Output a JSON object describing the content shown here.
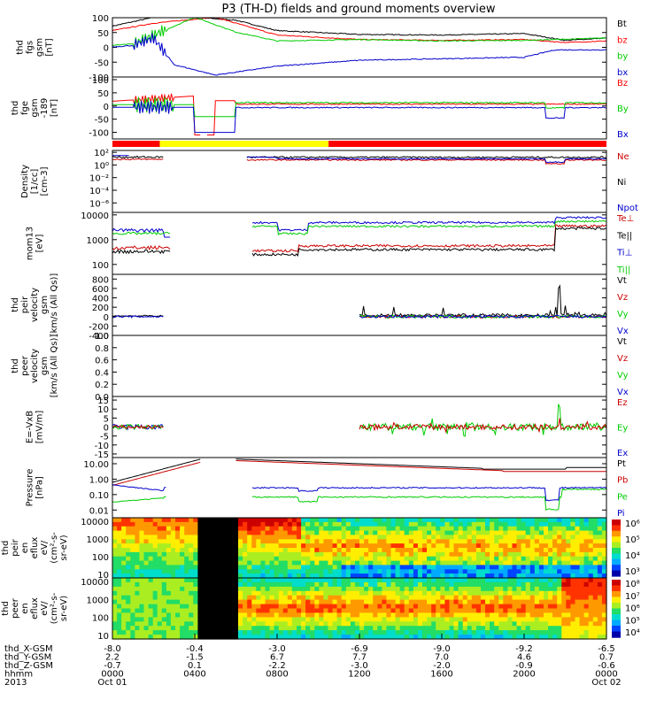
{
  "title": "P3 (TH-D) fields and ground moments overview",
  "panels": [
    {
      "id": "fgs",
      "ylabel": [
        "thd",
        "fgs",
        "gsm",
        "[nT]"
      ],
      "ticks": [
        "100",
        "50",
        "0",
        "-50",
        "-100"
      ],
      "tickvals": [
        100,
        50,
        0,
        -50,
        -100
      ],
      "ylim": [
        -100,
        100
      ],
      "log": false,
      "legend": [
        {
          "text": "Bt",
          "color": "#000000"
        },
        {
          "text": "bz",
          "color": "#ff0000"
        },
        {
          "text": "by",
          "color": "#00cc00"
        },
        {
          "text": "bx",
          "color": "#0000cc"
        }
      ]
    },
    {
      "id": "fge",
      "ylabel": [
        "thd",
        "fge",
        "gsm",
        "-189",
        "[nT]"
      ],
      "ticks": [
        "100",
        "50",
        "0",
        "-50",
        "-100"
      ],
      "tickvals": [
        100,
        50,
        0,
        -50,
        -100
      ],
      "ylim": [
        -125,
        110
      ],
      "log": false,
      "legend": [
        {
          "text": "Bz",
          "color": "#ff0000"
        },
        {
          "text": "By",
          "color": "#00cc00"
        },
        {
          "text": "Bx",
          "color": "#0000cc"
        }
      ]
    },
    {
      "id": "density",
      "ylabel": [
        "Density",
        "[1/cc]",
        "[cm-3]"
      ],
      "ticks": [
        "10²",
        "10⁰",
        "10⁻²",
        "10⁻⁴",
        "10⁻⁶"
      ],
      "tickvals": [
        2,
        0,
        -2,
        -4,
        -6
      ],
      "ylim": [
        -7.5,
        2.3
      ],
      "log": true,
      "legend": [
        {
          "text": "Ne",
          "color": "#cc0000"
        },
        {
          "text": "Ni",
          "color": "#000000"
        },
        {
          "text": "Npot",
          "color": "#0000cc"
        }
      ]
    },
    {
      "id": "temp",
      "ylabel": [
        "mom13",
        "[eV]"
      ],
      "ticks": [
        "10000",
        "1000",
        "100"
      ],
      "tickvals": [
        4,
        3,
        2
      ],
      "ylim": [
        1.6,
        4.1
      ],
      "log": true,
      "legend": [
        {
          "text": "Te⊥",
          "color": "#cc0000"
        },
        {
          "text": "Te||",
          "color": "#000000"
        },
        {
          "text": "Ti⊥",
          "color": "#0000cc"
        },
        {
          "text": "Ti||",
          "color": "#00cc00"
        }
      ]
    },
    {
      "id": "peir_vel",
      "ylabel": [
        "thd",
        "peir",
        "velocity",
        "gsm",
        "[km/s (All Qs)]"
      ],
      "ticks": [
        "800",
        "600",
        "400",
        "200",
        "0",
        "-200",
        "-400"
      ],
      "tickvals": [
        800,
        600,
        400,
        200,
        0,
        -200,
        -400
      ],
      "ylim": [
        -400,
        900
      ],
      "log": false,
      "legend": [
        {
          "text": "Vt",
          "color": "#000000"
        },
        {
          "text": "Vz",
          "color": "#cc0000"
        },
        {
          "text": "Vy",
          "color": "#00cc00"
        },
        {
          "text": "Vx",
          "color": "#0000cc"
        }
      ]
    },
    {
      "id": "peer_vel",
      "ylabel": [
        "thd",
        "peer",
        "velocity",
        "gsm",
        "[km/s (All Qs)]"
      ],
      "ticks": [
        "1.0",
        "0.8",
        "0.6",
        "0.4",
        "0.2",
        "0.0"
      ],
      "tickvals": [
        1.0,
        0.8,
        0.6,
        0.4,
        0.2,
        0.0
      ],
      "ylim": [
        0,
        1
      ],
      "log": false,
      "legend": [
        {
          "text": "Vt",
          "color": "#000000"
        },
        {
          "text": "Vz",
          "color": "#cc0000"
        },
        {
          "text": "Vy",
          "color": "#00cc00"
        },
        {
          "text": "Vx",
          "color": "#0000cc"
        }
      ]
    },
    {
      "id": "efield",
      "ylabel": [
        "E=-VxB",
        "[mV/m]"
      ],
      "ticks": [
        "15",
        "10",
        "5",
        "0",
        "-5",
        "-10",
        "-15"
      ],
      "tickvals": [
        15,
        10,
        5,
        0,
        -5,
        -10,
        -15
      ],
      "ylim": [
        -17,
        17
      ],
      "log": false,
      "legend": [
        {
          "text": "Ez",
          "color": "#cc0000"
        },
        {
          "text": "Ey",
          "color": "#00cc00"
        },
        {
          "text": "Ex",
          "color": "#0000cc"
        }
      ]
    },
    {
      "id": "pressure",
      "ylabel": [
        "Pressure",
        "[nPa]"
      ],
      "ticks": [
        "10.00",
        "1.00",
        "0.10",
        "0.01"
      ],
      "tickvals": [
        1,
        0,
        -1,
        -2
      ],
      "ylim": [
        -2.5,
        1.4
      ],
      "log": true,
      "legend": [
        {
          "text": "Pt",
          "color": "#000000"
        },
        {
          "text": "Pb",
          "color": "#cc0000"
        },
        {
          "text": "Pe",
          "color": "#00cc00"
        },
        {
          "text": "Pi",
          "color": "#0000cc"
        }
      ]
    },
    {
      "id": "peir_spec",
      "ylabel": [
        "thd",
        "peir",
        "en",
        "eflux",
        "eV/",
        "(cm²-s-",
        "sr-eV)"
      ],
      "ticks": [
        "10000",
        "1000",
        "100",
        "10"
      ],
      "tickvals": [
        4,
        3,
        2,
        1
      ],
      "ylim": [
        0.8,
        4.2
      ],
      "log": true,
      "colorbar": [
        "10⁶",
        "10⁵",
        "10⁴",
        "10³"
      ]
    },
    {
      "id": "peer_spec",
      "ylabel": [
        "thd",
        "peer",
        "en",
        "eflux",
        "eV/",
        "(cm²-s-",
        "sr-eV)"
      ],
      "ticks": [
        "10000",
        "1000",
        "100",
        "10"
      ],
      "tickvals": [
        4,
        3,
        2,
        1
      ],
      "ylim": [
        0.8,
        4.2
      ],
      "log": true,
      "colorbar": [
        "10⁸",
        "10⁷",
        "10⁶",
        "10⁵",
        "10⁴"
      ]
    }
  ],
  "xaxis": {
    "rowlabels": [
      "thd_X-GSM",
      "thd_Y-GSM",
      "thd_Z-GSM",
      "hhmm",
      "2013"
    ],
    "columns": [
      {
        "t": 0,
        "vals": [
          "-8.0",
          "2.2",
          "-0.7",
          "0000",
          "Oct 01"
        ]
      },
      {
        "t": 4,
        "vals": [
          "-0.4",
          "-1.5",
          "0.1",
          "0400",
          ""
        ]
      },
      {
        "t": 8,
        "vals": [
          "-3.0",
          "6.7",
          "-2.2",
          "0800",
          ""
        ]
      },
      {
        "t": 12,
        "vals": [
          "-6.9",
          "7.7",
          "-3.0",
          "1200",
          ""
        ]
      },
      {
        "t": 16,
        "vals": [
          "-9.0",
          "7.0",
          "-2.0",
          "1600",
          ""
        ]
      },
      {
        "t": 20,
        "vals": [
          "-9.2",
          "4.6",
          "-0.9",
          "2000",
          ""
        ]
      },
      {
        "t": 24,
        "vals": [
          "-6.5",
          "0.7",
          "-0.6",
          "0000",
          "Oct 02"
        ]
      }
    ]
  },
  "chart_data": {
    "type": "line",
    "title": "P3 (TH-D) fields and ground moments overview",
    "x_range_hours": [
      0,
      24
    ],
    "status_bar": [
      {
        "from": 0,
        "to": 2.3,
        "color": "#ff0000"
      },
      {
        "from": 2.3,
        "to": 10.5,
        "color": "#ffff00"
      },
      {
        "from": 10.5,
        "to": 24,
        "color": "#ff0000"
      }
    ],
    "data_gaps_hours": [
      [
        4.0,
        6.0
      ]
    ],
    "fgs_gsm_approx": {
      "Bt": [
        [
          0,
          70
        ],
        [
          2,
          100
        ],
        [
          4,
          100
        ],
        [
          6,
          90
        ],
        [
          8,
          55
        ],
        [
          12,
          42
        ],
        [
          16,
          40
        ],
        [
          20,
          45
        ],
        [
          22,
          22
        ],
        [
          24,
          30
        ]
      ],
      "bz": [
        [
          0,
          55
        ],
        [
          2,
          80
        ],
        [
          5,
          100
        ],
        [
          7,
          60
        ],
        [
          8,
          40
        ],
        [
          12,
          25
        ],
        [
          16,
          22
        ],
        [
          20,
          25
        ],
        [
          22,
          15
        ],
        [
          24,
          20
        ]
      ],
      "by": [
        [
          0,
          5
        ],
        [
          1,
          10
        ],
        [
          2,
          40
        ],
        [
          4,
          100
        ],
        [
          6,
          50
        ],
        [
          8,
          20
        ],
        [
          12,
          25
        ],
        [
          16,
          20
        ],
        [
          20,
          22
        ],
        [
          24,
          30
        ]
      ],
      "bx": [
        [
          0,
          0
        ],
        [
          1,
          5
        ],
        [
          2,
          30
        ],
        [
          3,
          -60
        ],
        [
          5,
          -95
        ],
        [
          8,
          -65
        ],
        [
          12,
          -45
        ],
        [
          16,
          -40
        ],
        [
          20,
          -35
        ],
        [
          21.5,
          -10
        ],
        [
          24,
          -10
        ]
      ]
    }
  }
}
